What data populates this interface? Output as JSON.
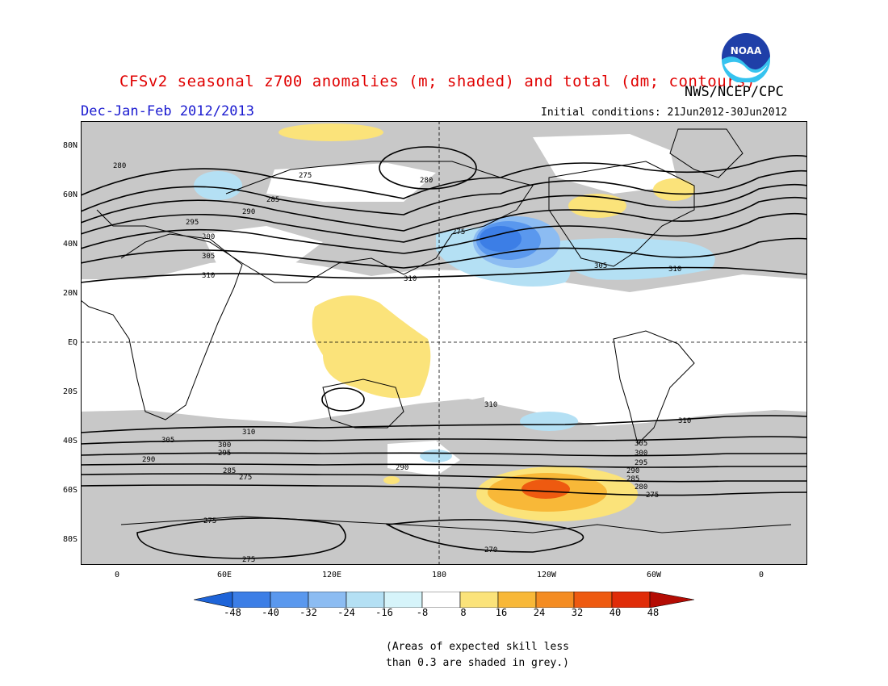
{
  "header": {
    "title": "CFSv2 seasonal z700 anomalies (m; shaded) and total (dm; contours)",
    "org": "NWS/NCEP/CPC",
    "season": "Dec-Jan-Feb 2012/2013",
    "initial_conditions": "Initial conditions: 21Jun2012-30Jun2012",
    "logo_text": "NOAA"
  },
  "map": {
    "projection": "cylindrical equidistant",
    "lat_labels": [
      "80N",
      "60N",
      "40N",
      "20N",
      "EQ",
      "20S",
      "40S",
      "60S",
      "80S"
    ],
    "lon_labels": [
      "0",
      "60E",
      "120E",
      "180",
      "120W",
      "60W",
      "0"
    ],
    "contour_labels": [
      "270",
      "275",
      "280",
      "285",
      "290",
      "295",
      "300",
      "305",
      "310"
    ],
    "colors": {
      "skill_grey": "#c8c8c8",
      "contour": "#000000",
      "title": "#e00000",
      "season": "#1a1ad0"
    }
  },
  "colorbar": {
    "labels": [
      "-48",
      "-40",
      "-32",
      "-24",
      "-16",
      "-8",
      "8",
      "16",
      "24",
      "32",
      "40",
      "48"
    ],
    "colors": [
      "#1e64d8",
      "#3c7ee6",
      "#5a98ee",
      "#8cbcf2",
      "#b4e0f4",
      "#d6f4fa",
      "#ffffff",
      "#fbe37a",
      "#f8b838",
      "#f48c22",
      "#ee5a10",
      "#e02c08",
      "#b40c04",
      "#b40c04"
    ]
  },
  "note": {
    "line1": "(Areas of expected skill less",
    "line2": "than 0.3 are shaded in grey.)"
  }
}
